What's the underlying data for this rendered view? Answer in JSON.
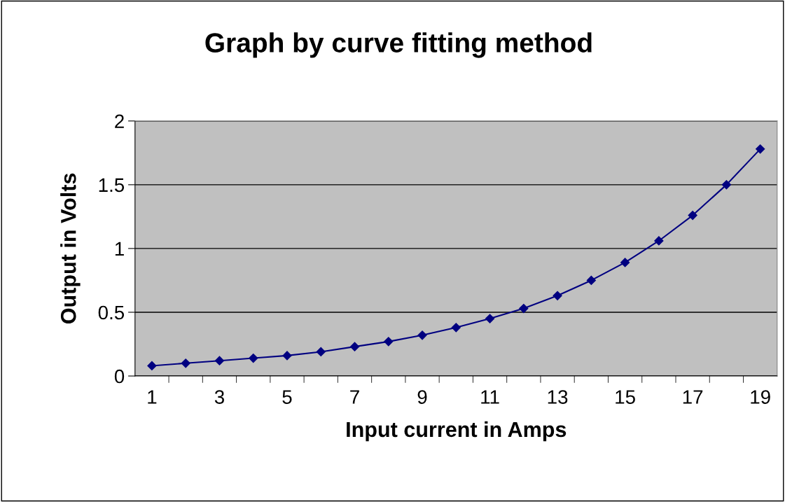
{
  "chart_data": {
    "type": "line",
    "title": "Graph by curve fitting method",
    "xlabel": "Input current in Amps",
    "ylabel": "Output in Volts",
    "categories": [
      "1",
      null,
      "3",
      null,
      "5",
      null,
      "7",
      null,
      "9",
      null,
      "11",
      null,
      "13",
      null,
      "15",
      null,
      "17",
      null,
      "19"
    ],
    "series": [
      {
        "color": "#000080",
        "values": [
          0.08,
          0.1,
          0.12,
          0.14,
          0.16,
          0.19,
          0.23,
          0.27,
          0.32,
          0.38,
          0.45,
          0.53,
          0.63,
          0.75,
          0.89,
          1.06,
          1.26,
          1.5,
          1.78
        ]
      }
    ],
    "ylim": [
      0,
      2
    ],
    "yticks": [
      0,
      0.5,
      1,
      1.5,
      2
    ],
    "grid": "y",
    "marker": "diamond",
    "line_style": "solid"
  }
}
